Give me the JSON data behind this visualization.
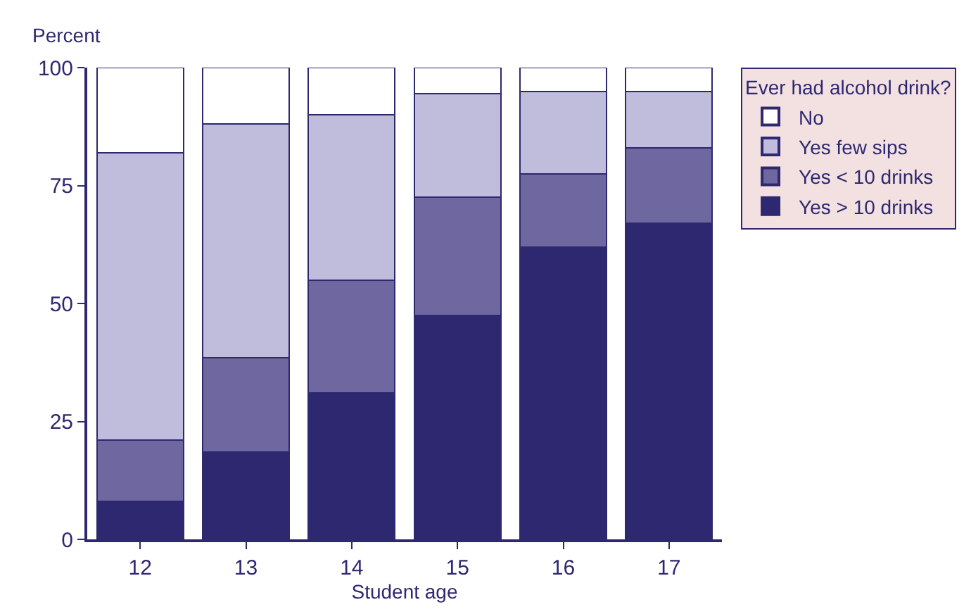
{
  "chart_data": {
    "type": "bar",
    "stacked": true,
    "xlabel": "Student age",
    "ylabel": "Percent",
    "legend_title": "Ever had alcohol drink?",
    "legend": "right",
    "categories": [
      "12",
      "13",
      "14",
      "15",
      "16",
      "17"
    ],
    "ylim": [
      0,
      100
    ],
    "yticks": [
      0,
      25,
      50,
      75,
      100
    ],
    "series": [
      {
        "name": "Yes > 10 drinks",
        "color": "#2e2870",
        "values": [
          8,
          18.5,
          31,
          47.5,
          62,
          67
        ]
      },
      {
        "name": "Yes < 10 drinks",
        "color": "#6f68a0",
        "values": [
          13,
          20,
          24,
          25,
          15.5,
          16
        ]
      },
      {
        "name": "Yes few sips",
        "color": "#c0bcdc",
        "values": [
          61,
          49.5,
          35,
          22,
          17.5,
          12
        ]
      },
      {
        "name": "No",
        "color": "#ffffff",
        "values": [
          18,
          12,
          10,
          5.5,
          5,
          5
        ]
      }
    ]
  }
}
